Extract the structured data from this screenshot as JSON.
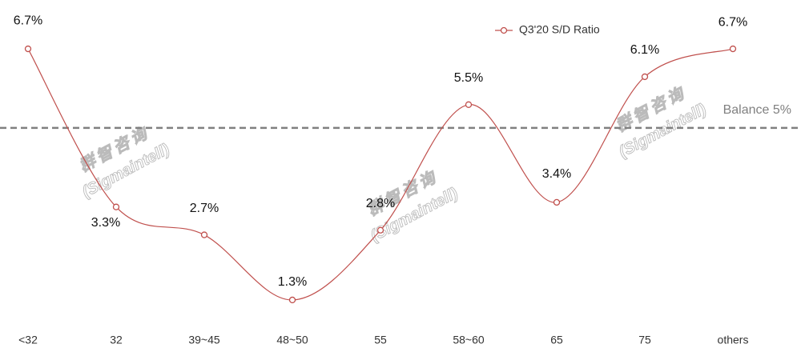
{
  "chart_data": {
    "type": "line",
    "categories": [
      "<32",
      "32",
      "39~45",
      "48~50",
      "55",
      "58~60",
      "65",
      "75",
      "others"
    ],
    "series": [
      {
        "name": "Q3'20 S/D Ratio",
        "color": "#c0504d",
        "values": [
          6.7,
          3.3,
          2.7,
          1.3,
          2.8,
          5.5,
          3.4,
          6.1,
          6.7
        ],
        "value_labels": [
          "6.7%",
          "3.3%",
          "2.7%",
          "1.3%",
          "2.8%",
          "5.5%",
          "3.4%",
          "6.1%",
          "6.7%"
        ]
      }
    ],
    "ylim": [
      1,
      7
    ],
    "smooth": true,
    "legend": "top",
    "reference_line": {
      "value": 5,
      "label": "Balance 5%",
      "color": "#808080"
    },
    "watermarks": [
      {
        "text": "群智咨询",
        "subtext": "(Sigmaintell)"
      },
      {
        "text": "群智咨询",
        "subtext": "(Sigmaintell)"
      },
      {
        "text": "群智咨询",
        "subtext": "(Sigmaintell)"
      }
    ]
  }
}
